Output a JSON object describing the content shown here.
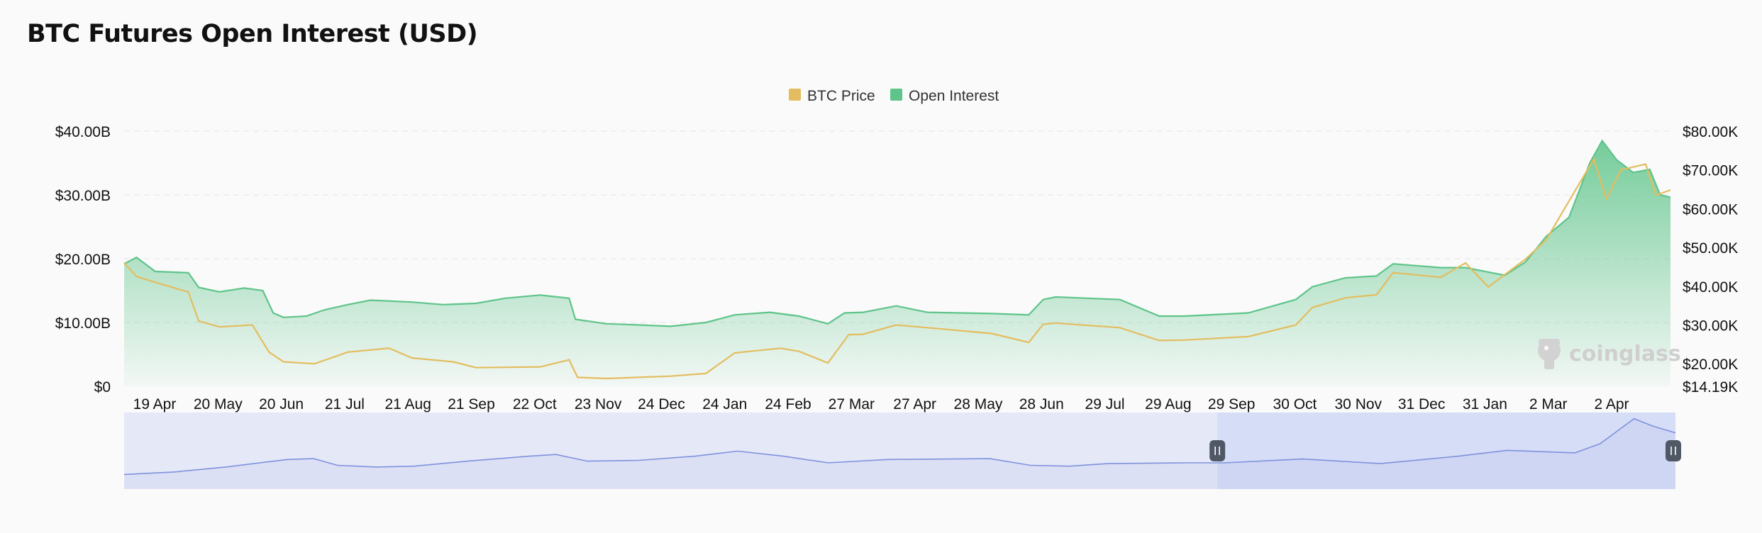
{
  "title": "BTC Futures Open Interest (USD)",
  "watermark": "coinglass",
  "colors": {
    "price": "#e3bd5f",
    "open_interest": "#5ec48a",
    "navigator_line": "#7f92dd",
    "navigator_fill": "#e4e8f7",
    "navigator_selected": "#d6ddf7",
    "grid": "#ebebeb"
  },
  "chart_data": {
    "type": "area",
    "title": "BTC Futures Open Interest (USD)",
    "legend": {
      "position": "top-center",
      "items": [
        "BTC Price",
        "Open Interest"
      ]
    },
    "grid": true,
    "y_left": {
      "ylim": [
        0,
        40000000000
      ],
      "ticks": [
        "$0",
        "$10.00B",
        "$20.00B",
        "$30.00B",
        "$40.00B"
      ]
    },
    "y_right": {
      "ylim": [
        14190,
        80000
      ],
      "ticks": [
        "$14.19K",
        "$20.00K",
        "$30.00K",
        "$40.00K",
        "$50.00K",
        "$60.00K",
        "$70.00K",
        "$80.00K"
      ]
    },
    "x_ticks": [
      "19 Apr",
      "20 May",
      "20 Jun",
      "21 Jul",
      "21 Aug",
      "21 Sep",
      "22 Oct",
      "23 Nov",
      "24 Dec",
      "24 Jan",
      "24 Feb",
      "27 Mar",
      "27 Apr",
      "28 May",
      "28 Jun",
      "29 Jul",
      "29 Aug",
      "29 Sep",
      "30 Oct",
      "30 Nov",
      "31 Dec",
      "31 Jan",
      "2 Mar",
      "2 Apr"
    ],
    "x_range": [
      "2022-04-04",
      "2024-04-20"
    ],
    "series": [
      {
        "name": "Open Interest",
        "unit": "USD",
        "values": [
          [
            "2022-04-04",
            19200000000.0
          ],
          [
            "2022-04-10",
            20200000000.0
          ],
          [
            "2022-04-19",
            18000000000.0
          ],
          [
            "2022-05-05",
            17800000000.0
          ],
          [
            "2022-05-10",
            15500000000.0
          ],
          [
            "2022-05-20",
            14800000000.0
          ],
          [
            "2022-06-01",
            15400000000.0
          ],
          [
            "2022-06-10",
            15000000000.0
          ],
          [
            "2022-06-15",
            11500000000.0
          ],
          [
            "2022-06-20",
            10800000000.0
          ],
          [
            "2022-07-01",
            11000000000.0
          ],
          [
            "2022-07-10",
            12000000000.0
          ],
          [
            "2022-07-21",
            12800000000.0
          ],
          [
            "2022-08-01",
            13500000000.0
          ],
          [
            "2022-08-21",
            13200000000.0
          ],
          [
            "2022-09-05",
            12800000000.0
          ],
          [
            "2022-09-21",
            13000000000.0
          ],
          [
            "2022-10-05",
            13800000000.0
          ],
          [
            "2022-10-22",
            14300000000.0
          ],
          [
            "2022-11-05",
            13800000000.0
          ],
          [
            "2022-11-08",
            10500000000.0
          ],
          [
            "2022-11-23",
            9800000000.0
          ],
          [
            "2022-12-10",
            9600000000.0
          ],
          [
            "2022-12-24",
            9400000000.0
          ],
          [
            "2023-01-10",
            10000000000.0
          ],
          [
            "2023-01-24",
            11200000000.0
          ],
          [
            "2023-02-10",
            11600000000.0
          ],
          [
            "2023-02-24",
            11000000000.0
          ],
          [
            "2023-03-10",
            9800000000.0
          ],
          [
            "2023-03-18",
            11500000000.0
          ],
          [
            "2023-03-27",
            11600000000.0
          ],
          [
            "2023-04-12",
            12600000000.0
          ],
          [
            "2023-04-27",
            11600000000.0
          ],
          [
            "2023-05-28",
            11400000000.0
          ],
          [
            "2023-06-15",
            11200000000.0
          ],
          [
            "2023-06-22",
            13600000000.0
          ],
          [
            "2023-06-28",
            14000000000.0
          ],
          [
            "2023-07-29",
            13600000000.0
          ],
          [
            "2023-08-17",
            11000000000.0
          ],
          [
            "2023-08-29",
            11000000000.0
          ],
          [
            "2023-09-29",
            11500000000.0
          ],
          [
            "2023-10-22",
            13600000000.0
          ],
          [
            "2023-10-30",
            15600000000.0
          ],
          [
            "2023-11-15",
            17000000000.0
          ],
          [
            "2023-11-30",
            17300000000.0
          ],
          [
            "2023-12-08",
            19200000000.0
          ],
          [
            "2023-12-31",
            18600000000.0
          ],
          [
            "2024-01-12",
            18600000000.0
          ],
          [
            "2024-01-31",
            17400000000.0
          ],
          [
            "2024-02-10",
            19500000000.0
          ],
          [
            "2024-02-20",
            23500000000.0
          ],
          [
            "2024-03-02",
            26500000000.0
          ],
          [
            "2024-03-12",
            35000000000.0
          ],
          [
            "2024-03-18",
            38500000000.0
          ],
          [
            "2024-03-25",
            35500000000.0
          ],
          [
            "2024-04-02",
            33500000000.0
          ],
          [
            "2024-04-10",
            34000000000.0
          ],
          [
            "2024-04-15",
            30000000000.0
          ],
          [
            "2024-04-20",
            29600000000.0
          ]
        ]
      },
      {
        "name": "BTC Price",
        "unit": "USD",
        "values": [
          [
            "2022-04-04",
            46000
          ],
          [
            "2022-04-10",
            42500
          ],
          [
            "2022-04-19",
            41000
          ],
          [
            "2022-05-05",
            38500
          ],
          [
            "2022-05-10",
            31000
          ],
          [
            "2022-05-20",
            29500
          ],
          [
            "2022-06-05",
            30000
          ],
          [
            "2022-06-13",
            23000
          ],
          [
            "2022-06-20",
            20500
          ],
          [
            "2022-07-05",
            20000
          ],
          [
            "2022-07-21",
            23000
          ],
          [
            "2022-08-10",
            24000
          ],
          [
            "2022-08-21",
            21500
          ],
          [
            "2022-09-10",
            20500
          ],
          [
            "2022-09-21",
            19000
          ],
          [
            "2022-10-22",
            19200
          ],
          [
            "2022-11-05",
            21000
          ],
          [
            "2022-11-09",
            16500
          ],
          [
            "2022-11-23",
            16200
          ],
          [
            "2022-12-24",
            16800
          ],
          [
            "2023-01-10",
            17500
          ],
          [
            "2023-01-24",
            22800
          ],
          [
            "2023-02-15",
            24000
          ],
          [
            "2023-02-24",
            23200
          ],
          [
            "2023-03-10",
            20200
          ],
          [
            "2023-03-20",
            27500
          ],
          [
            "2023-03-27",
            27600
          ],
          [
            "2023-04-12",
            30000
          ],
          [
            "2023-04-27",
            29300
          ],
          [
            "2023-05-28",
            27800
          ],
          [
            "2023-06-15",
            25500
          ],
          [
            "2023-06-22",
            30200
          ],
          [
            "2023-06-28",
            30500
          ],
          [
            "2023-07-29",
            29300
          ],
          [
            "2023-08-17",
            26000
          ],
          [
            "2023-08-29",
            26100
          ],
          [
            "2023-09-29",
            27000
          ],
          [
            "2023-10-22",
            30000
          ],
          [
            "2023-10-30",
            34500
          ],
          [
            "2023-11-15",
            37000
          ],
          [
            "2023-11-30",
            37800
          ],
          [
            "2023-12-08",
            43500
          ],
          [
            "2023-12-31",
            42300
          ],
          [
            "2024-01-12",
            46000
          ],
          [
            "2024-01-23",
            39800
          ],
          [
            "2024-01-31",
            43000
          ],
          [
            "2024-02-10",
            47000
          ],
          [
            "2024-02-20",
            52000
          ],
          [
            "2024-03-02",
            62000
          ],
          [
            "2024-03-14",
            72800
          ],
          [
            "2024-03-20",
            62500
          ],
          [
            "2024-03-27",
            70000
          ],
          [
            "2024-04-08",
            71500
          ],
          [
            "2024-04-13",
            63500
          ],
          [
            "2024-04-20",
            64800
          ]
        ]
      }
    ],
    "navigator": {
      "type": "area",
      "range": [
        "2022-04-04",
        "2024-04-20"
      ],
      "selected": [
        "2023-04-21",
        "2024-04-20"
      ],
      "values": [
        [
          "2020-12-01",
          4500000000.0
        ],
        [
          "2021-01-10",
          6000000000.0
        ],
        [
          "2021-02-20",
          9000000000.0
        ],
        [
          "2021-04-10",
          13500000000.0
        ],
        [
          "2021-05-01",
          14000000000.0
        ],
        [
          "2021-05-20",
          10000000000.0
        ],
        [
          "2021-06-20",
          9000000000.0
        ],
        [
          "2021-07-20",
          9500000000.0
        ],
        [
          "2021-09-01",
          12500000000.0
        ],
        [
          "2021-10-20",
          15500000000.0
        ],
        [
          "2021-11-10",
          16500000000.0
        ],
        [
          "2021-12-05",
          12500000000.0
        ],
        [
          "2022-01-15",
          13000000000.0
        ],
        [
          "2022-03-01",
          15500000000.0
        ],
        [
          "2022-04-04",
          18500000000.0
        ],
        [
          "2022-05-10",
          15500000000.0
        ],
        [
          "2022-06-15",
          11500000000.0
        ],
        [
          "2022-08-01",
          13500000000.0
        ],
        [
          "2022-10-22",
          14000000000.0
        ],
        [
          "2022-11-23",
          10000000000.0
        ],
        [
          "2022-12-24",
          9500000000.0
        ],
        [
          "2023-01-24",
          11000000000.0
        ],
        [
          "2023-03-27",
          11500000000.0
        ],
        [
          "2023-04-27",
          11500000000.0
        ],
        [
          "2023-06-28",
          13800000000.0
        ],
        [
          "2023-08-29",
          11000000000.0
        ],
        [
          "2023-10-30",
          15500000000.0
        ],
        [
          "2023-12-08",
          19000000000.0
        ],
        [
          "2024-01-31",
          17500000000.0
        ],
        [
          "2024-02-20",
          23000000000.0
        ],
        [
          "2024-03-18",
          38000000000.0
        ],
        [
          "2024-04-02",
          33500000000.0
        ],
        [
          "2024-04-20",
          29500000000.0
        ]
      ]
    }
  }
}
